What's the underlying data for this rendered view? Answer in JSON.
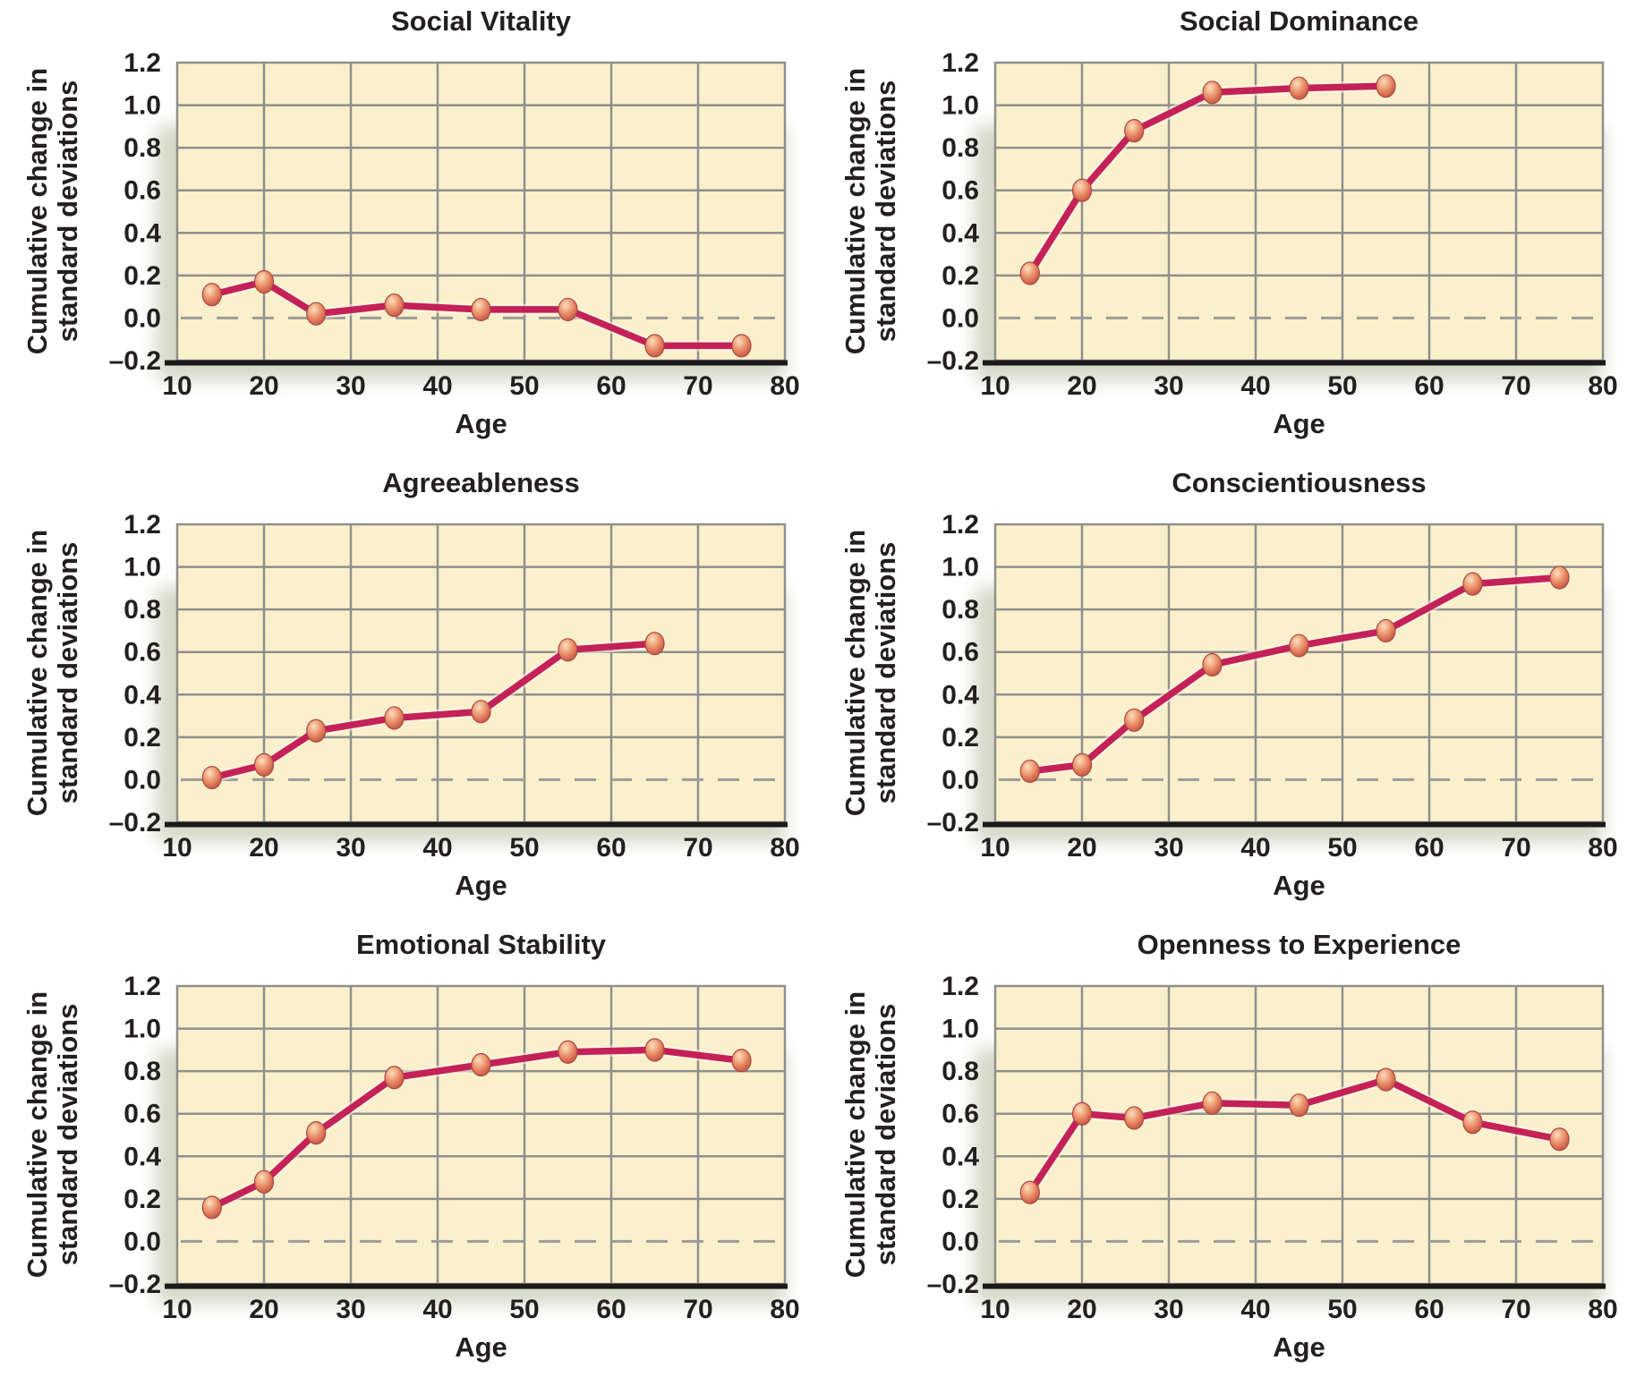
{
  "figure": {
    "x_axis_label": "Age",
    "y_axis_label_line1": "Cumulative change in",
    "y_axis_label_line2": "standard deviations",
    "x_tick_labels": [
      "10",
      "20",
      "30",
      "40",
      "50",
      "60",
      "70",
      "80"
    ],
    "x_tick_values": [
      10,
      20,
      30,
      40,
      50,
      60,
      70,
      80
    ],
    "y_tick_labels": [
      "1.2",
      "1.0",
      "0.8",
      "0.6",
      "0.4",
      "0.2",
      "0.0",
      "–0.2"
    ],
    "y_tick_values": [
      1.2,
      1.0,
      0.8,
      0.6,
      0.4,
      0.2,
      0.0,
      -0.2
    ],
    "colors": {
      "plot_background": "#FBF0CC",
      "grid_line": "#8F8F8D",
      "zero_dash_line": "#9B9B99",
      "axis_line": "#1A1A1A",
      "data_line": "#C32158",
      "line_halo": "#FFF8E8",
      "marker_highlight": "#FBE0C6",
      "marker_mid": "#F3B28A",
      "marker_body": "#E5815F",
      "marker_edge": "#BC5544",
      "marker_outline": "#AC4743",
      "shadow": "#A9AE8C",
      "text": "#231F20"
    }
  },
  "chart_data": [
    {
      "type": "line",
      "title": "Social Vitality",
      "xlabel": "Age",
      "ylabel": "Cumulative change in standard deviations",
      "xlim": [
        10,
        80
      ],
      "ylim": [
        -0.2,
        1.2
      ],
      "grid": true,
      "zero_line": "dashed",
      "x": [
        14,
        20,
        26,
        35,
        45,
        55,
        65,
        75
      ],
      "y": [
        0.11,
        0.17,
        0.02,
        0.06,
        0.04,
        0.04,
        -0.13,
        -0.13
      ]
    },
    {
      "type": "line",
      "title": "Social Dominance",
      "xlabel": "Age",
      "ylabel": "Cumulative change in standard deviations",
      "xlim": [
        10,
        80
      ],
      "ylim": [
        -0.2,
        1.2
      ],
      "grid": true,
      "zero_line": "dashed",
      "x": [
        14,
        20,
        26,
        35,
        45,
        55
      ],
      "y": [
        0.21,
        0.6,
        0.88,
        1.06,
        1.08,
        1.09
      ]
    },
    {
      "type": "line",
      "title": "Agreeableness",
      "xlabel": "Age",
      "ylabel": "Cumulative change in standard deviations",
      "xlim": [
        10,
        80
      ],
      "ylim": [
        -0.2,
        1.2
      ],
      "grid": true,
      "zero_line": "dashed",
      "x": [
        14,
        20,
        26,
        35,
        45,
        55,
        65
      ],
      "y": [
        0.01,
        0.07,
        0.23,
        0.29,
        0.32,
        0.61,
        0.64
      ]
    },
    {
      "type": "line",
      "title": "Conscientiousness",
      "xlabel": "Age",
      "ylabel": "Cumulative change in standard deviations",
      "xlim": [
        10,
        80
      ],
      "ylim": [
        -0.2,
        1.2
      ],
      "grid": true,
      "zero_line": "dashed",
      "x": [
        14,
        20,
        26,
        35,
        45,
        55,
        65,
        75
      ],
      "y": [
        0.04,
        0.07,
        0.28,
        0.54,
        0.63,
        0.7,
        0.92,
        0.95
      ]
    },
    {
      "type": "line",
      "title": "Emotional Stability",
      "xlabel": "Age",
      "ylabel": "Cumulative change in standard deviations",
      "xlim": [
        10,
        80
      ],
      "ylim": [
        -0.2,
        1.2
      ],
      "grid": true,
      "zero_line": "dashed",
      "x": [
        14,
        20,
        26,
        35,
        45,
        55,
        65,
        75
      ],
      "y": [
        0.16,
        0.28,
        0.51,
        0.77,
        0.83,
        0.89,
        0.9,
        0.85
      ]
    },
    {
      "type": "line",
      "title": "Openness to Experience",
      "xlabel": "Age",
      "ylabel": "Cumulative change in standard deviations",
      "xlim": [
        10,
        80
      ],
      "ylim": [
        -0.2,
        1.2
      ],
      "grid": true,
      "zero_line": "dashed",
      "x": [
        14,
        20,
        26,
        35,
        45,
        55,
        65,
        75
      ],
      "y": [
        0.23,
        0.6,
        0.58,
        0.65,
        0.64,
        0.76,
        0.56,
        0.48
      ]
    }
  ]
}
